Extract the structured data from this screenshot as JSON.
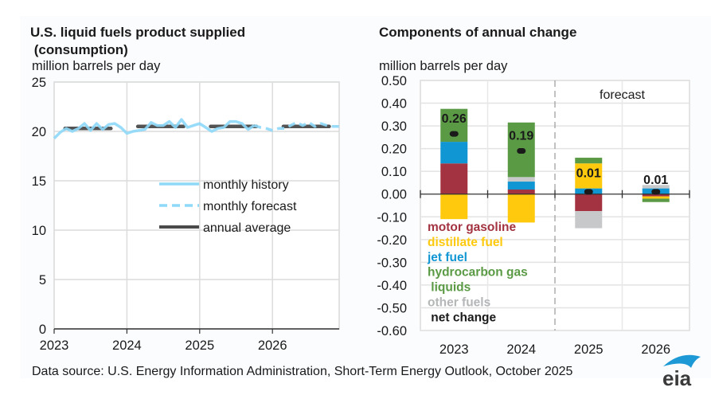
{
  "chart_data": [
    {
      "type": "line",
      "title_line1": "U.S. liquid fuels product supplied",
      "title_line2": " (consumption)",
      "ylabel": "million barrels per day",
      "xlabel": "",
      "ylim": [
        0,
        25
      ],
      "yticks": [
        "0",
        "5",
        "10",
        "15",
        "20",
        "25"
      ],
      "ytick_values": [
        0,
        5,
        10,
        15,
        20,
        25
      ],
      "xticks": [
        "2023",
        "2024",
        "2025",
        "2026"
      ],
      "xlim": [
        2023.0,
        2026.917
      ],
      "grid": true,
      "legend_position": "center-right",
      "series": [
        {
          "name": "monthly history",
          "style": "solid",
          "color": "#8ed8f8",
          "x_start": 2023.0,
          "step": 0.0833,
          "values": [
            19.3,
            19.9,
            20.3,
            20.0,
            20.3,
            20.8,
            20.1,
            20.8,
            20.2,
            20.7,
            20.8,
            20.4,
            19.8,
            20.0,
            20.1,
            20.2,
            20.9,
            20.6,
            20.6,
            21.0,
            20.4,
            21.2,
            20.4,
            20.6,
            20.8,
            20.4,
            20.0,
            20.3,
            20.4,
            21.0,
            21.0,
            20.8,
            20.2,
            20.6
          ]
        },
        {
          "name": "monthly forecast",
          "style": "dashed",
          "color": "#8ed8f8",
          "x_start": 2025.75,
          "step": 0.0833,
          "values": [
            20.6,
            20.4,
            20.3,
            20.1,
            20.3,
            20.3,
            20.6,
            20.9,
            20.6,
            20.9,
            20.5,
            20.8,
            20.6,
            20.5,
            20.5
          ]
        },
        {
          "name": "annual average",
          "style": "solid",
          "color": "#4a4a4a",
          "segments": [
            {
              "year": "2023",
              "value": 20.3
            },
            {
              "year": "2024",
              "value": 20.5
            },
            {
              "year": "2025",
              "value": 20.5
            },
            {
              "year": "2026",
              "value": 20.5
            }
          ]
        }
      ]
    },
    {
      "type": "bar",
      "stacked": true,
      "title": "Components of annual change",
      "ylabel": "million barrels per day",
      "xlabel": "",
      "ylim": [
        -0.6,
        0.5
      ],
      "yticks": [
        "0.50",
        "0.40",
        "0.30",
        "0.20",
        "0.10",
        "0.00",
        "-0.10",
        "-0.20",
        "-0.30",
        "-0.40",
        "-0.50",
        "-0.60"
      ],
      "ytick_values": [
        0.5,
        0.4,
        0.3,
        0.2,
        0.1,
        0.0,
        -0.1,
        -0.2,
        -0.3,
        -0.4,
        -0.5,
        -0.6
      ],
      "categories": [
        "2023",
        "2024",
        "2025",
        "2026"
      ],
      "grid": true,
      "forecast_label": "forecast",
      "forecast_starts_after": "2024",
      "legend_position": "bottom-left",
      "series": [
        {
          "name": "motor gasoline",
          "color": "#a33340",
          "values": [
            0.135,
            0.02,
            -0.075,
            -0.01
          ]
        },
        {
          "name": "distillate fuel",
          "color": "#ffc90e",
          "values": [
            -0.11,
            -0.125,
            0.11,
            -0.01
          ]
        },
        {
          "name": "jet fuel",
          "color": "#1196d4",
          "values": [
            0.095,
            0.035,
            0.025,
            0.025
          ]
        },
        {
          "name": "hydrocarbon gas liquids",
          "color": "#5a9a45",
          "values": [
            0.145,
            0.24,
            0.025,
            -0.015
          ]
        },
        {
          "name": "other fuels",
          "color": "#c6c8ca",
          "values": [
            0.0,
            0.02,
            -0.075,
            0.015
          ]
        }
      ],
      "net_change": {
        "name": "net change",
        "color": "#1a1a1a",
        "values": [
          0.265,
          0.19,
          0.01,
          0.01
        ],
        "labels": [
          "0.26",
          "0.19",
          "0.01",
          "0.01"
        ]
      },
      "legend_entries": [
        {
          "label": "motor gasoline",
          "color": "#a33340"
        },
        {
          "label": "distillate fuel",
          "color": "#ffc90e"
        },
        {
          "label": "jet fuel",
          "color": "#1196d4"
        },
        {
          "label": "hydrocarbon gas",
          "color": "#5a9a45"
        },
        {
          "label": " liquids",
          "color": "#5a9a45"
        },
        {
          "label": "other fuels",
          "color": "#b4b6b8"
        },
        {
          "label": " net change",
          "color": "#1a1a1a"
        }
      ]
    }
  ],
  "footer": {
    "source": "Data source: U.S. Energy Information Administration, Short-Term Energy Outlook, October 2025",
    "logo": "eia"
  },
  "colors": {
    "history_line": "#8ed8f8",
    "annual_avg": "#4a4a4a",
    "grid": "#dcdcdc",
    "logo_text": "#3a3a3a",
    "logo_arc": "#1d9ad6"
  }
}
